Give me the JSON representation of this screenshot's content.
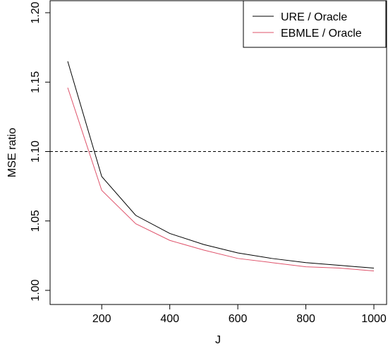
{
  "chart_data": {
    "type": "line",
    "title": "",
    "xlabel": "J",
    "ylabel": "MSE ratio",
    "xlim": [
      100,
      1000
    ],
    "ylim": [
      1.0,
      1.2
    ],
    "x_ticks": [
      "200",
      "400",
      "600",
      "800",
      "1000"
    ],
    "y_ticks": [
      "1.00",
      "1.05",
      "1.10",
      "1.15",
      "1.20"
    ],
    "x": [
      100,
      200,
      300,
      400,
      500,
      600,
      700,
      800,
      900,
      1000
    ],
    "series": [
      {
        "name": "URE / Oracle",
        "color": "#000000",
        "values": [
          1.165,
          1.082,
          1.054,
          1.041,
          1.033,
          1.027,
          1.023,
          1.02,
          1.018,
          1.016
        ]
      },
      {
        "name": "EBMLE / Oracle",
        "color": "#DF536B",
        "values": [
          1.146,
          1.072,
          1.048,
          1.036,
          1.029,
          1.023,
          1.02,
          1.017,
          1.016,
          1.014
        ]
      }
    ],
    "reference_line": {
      "y": 1.1,
      "style": "dashed",
      "color": "#000000"
    },
    "legend_position": "top-right",
    "grid": false
  }
}
